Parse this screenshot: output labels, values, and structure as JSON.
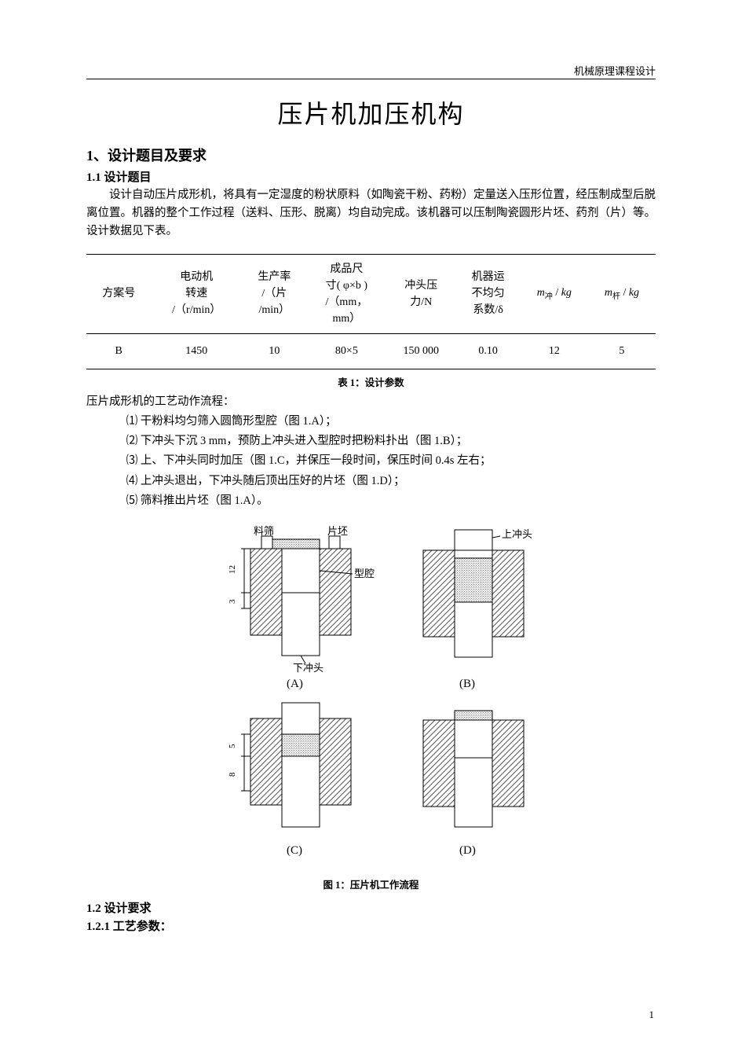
{
  "header": {
    "course": "机械原理课程设计"
  },
  "title": "压片机加压机构",
  "section1": {
    "heading": "1、设计题目及要求",
    "sub1_heading": "1.1 设计题目",
    "paragraph": "设计自动压片成形机，将具有一定湿度的粉状原料（如陶瓷干粉、药粉）定量送入压形位置，经压制成型后脱离位置。机器的整个工作过程（送料、压形、脱离）均自动完成。该机器可以压制陶瓷圆形片坯、药剂（片）等。设计数据见下表。"
  },
  "table": {
    "caption": "表 1：设计参数",
    "columns": [
      {
        "lines": [
          "方案号"
        ]
      },
      {
        "lines": [
          "电动机",
          "转速",
          "/（r/min）"
        ]
      },
      {
        "lines": [
          "生产率",
          "/（片",
          "/min）"
        ]
      },
      {
        "lines": [
          "成品尺",
          "寸( φ×b )",
          "/（mm，",
          "mm）"
        ]
      },
      {
        "lines": [
          "冲头压",
          "力/N"
        ]
      },
      {
        "lines": [
          "机器运",
          "不均匀",
          "系数/δ"
        ]
      },
      {
        "html": "<span class='ital'>m</span><span class='sub'>冲</span> / <span class='ital'>kg</span>"
      },
      {
        "html": "<span class='ital'>m</span><span class='sub'>杆</span> / <span class='ital'>kg</span>"
      }
    ],
    "row": [
      "B",
      "1450",
      "10",
      "80×5",
      "150 000",
      "0.10",
      "12",
      "5"
    ]
  },
  "flow": {
    "intro": "压片成形机的工艺动作流程：",
    "items": [
      "⑴ 干粉料均匀筛入圆筒形型腔（图 1.A）；",
      "⑵ 下冲头下沉 3 mm，预防上冲头进入型腔时把粉料扑出（图 1.B）；",
      "⑶ 上、下冲头同时加压（图 1.C，并保压一段时间，保压时间 0.4s 左右；",
      "⑷ 上冲头退出，下冲头随后顶出压好的片坯（图 1.D）；",
      "⑸ 筛料推出片坯（图 1.A）。"
    ]
  },
  "figure": {
    "caption": "图 1：压片机工作流程",
    "labels": {
      "A": "(A)",
      "B": "(B)",
      "C": "(C)",
      "D": "(D)",
      "shai": "料筛",
      "pi": "片坯",
      "shang": "上冲头",
      "xing": "型腔",
      "xia": "下冲头"
    },
    "dims": {
      "h12": "12",
      "h3": "3",
      "h5": "5",
      "h8": "8"
    },
    "colors": {
      "stroke": "#000000",
      "hatch": "#555555",
      "powder": "#787878",
      "bg": "#ffffff"
    }
  },
  "section12": {
    "heading": "1.2 设计要求",
    "sub": "1.2.1 工艺参数："
  },
  "page": "1"
}
